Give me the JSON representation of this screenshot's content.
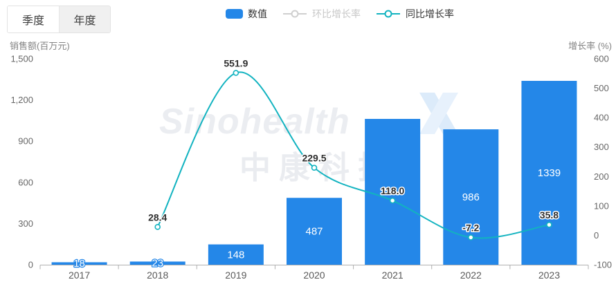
{
  "tabs": {
    "quarter": "季度",
    "year": "年度"
  },
  "legend": {
    "bar": "数值",
    "mom": "环比增长率",
    "yoy": "同比增长率"
  },
  "watermark": {
    "brand": "Sinohealth",
    "brand_cn": "中康科技"
  },
  "colors": {
    "bar": "#2487e8",
    "line": "#12b3c0",
    "disabled_legend": "#c7c7c7",
    "axis_line": "#b0b0b0",
    "tick_text": "#666666",
    "category_text": "#595959",
    "label_dark": "#2f2f2f",
    "bar_label": "#ffffff",
    "watermark_text": "#ebedf1",
    "watermark_x": "#dcebfa"
  },
  "chart_data": {
    "type": "bar+line",
    "categories": [
      "2017",
      "2018",
      "2019",
      "2020",
      "2021",
      "2022",
      "2023"
    ],
    "series": [
      {
        "name": "数值",
        "type": "bar",
        "axis": "left",
        "values": [
          18,
          23,
          148,
          487,
          1062,
          986,
          1339
        ],
        "labels": [
          "18",
          "23",
          "148",
          "487",
          "",
          "986",
          "1339"
        ]
      },
      {
        "name": "环比增长率",
        "type": "line",
        "axis": "right",
        "visible": false,
        "x": [],
        "values": [],
        "labels": []
      },
      {
        "name": "同比增长率",
        "type": "line",
        "axis": "right",
        "visible": true,
        "x": [
          "2018",
          "2019",
          "2020",
          "2021",
          "2022",
          "2023"
        ],
        "values": [
          28.4,
          551.9,
          229.5,
          118.0,
          -7.2,
          35.8
        ],
        "labels": [
          "28.4",
          "551.9",
          "229.5",
          "118.0",
          "-7.2",
          "35.8"
        ]
      }
    ],
    "left_axis": {
      "name": "销售额(百万元)",
      "min": 0,
      "max": 1500,
      "ticks": [
        0,
        300,
        600,
        900,
        1200,
        1500
      ],
      "tick_labels": [
        "0",
        "300",
        "600",
        "900",
        "1,200",
        "1,500"
      ]
    },
    "right_axis": {
      "name": "增长率 (%)",
      "min": -100,
      "max": 600,
      "ticks": [
        -100,
        0,
        100,
        200,
        300,
        400,
        500,
        600
      ],
      "tick_labels": [
        "-100",
        "0",
        "100",
        "200",
        "300",
        "400",
        "500",
        "600"
      ]
    },
    "grid": false,
    "legend_position": "top"
  }
}
